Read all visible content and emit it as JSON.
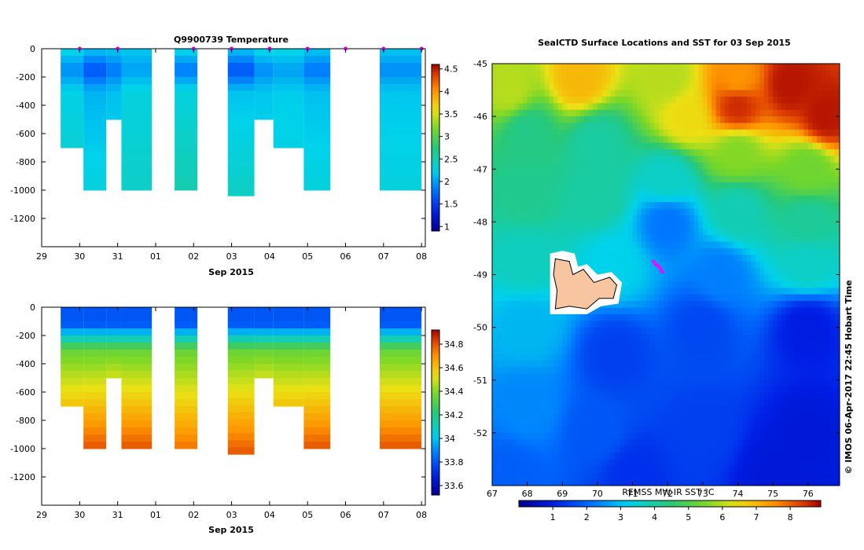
{
  "chart_data": [
    {
      "type": "heatmap",
      "title": "Q9900739  Temperature",
      "xlabel": "Sep 2015",
      "ylabel": "",
      "x_ticks": [
        "29",
        "30",
        "31",
        "01",
        "02",
        "03",
        "04",
        "05",
        "06",
        "07",
        "08"
      ],
      "x_range_days": [
        29,
        39.1
      ],
      "y_ticks": [
        0,
        -200,
        -400,
        -600,
        -800,
        -1000,
        -1200
      ],
      "ylim": [
        -1400,
        0
      ],
      "colorbar": {
        "ticks": [
          1,
          1.5,
          2,
          2.5,
          3,
          3.5,
          4,
          4.5
        ],
        "range": [
          0.9,
          4.6
        ]
      },
      "surface_marker_days": [
        30,
        31,
        33,
        34,
        35,
        36,
        37,
        38,
        39
      ],
      "profiles": [
        {
          "day_start": 29.5,
          "day_end": 30.1,
          "depth": -700,
          "surface_value": 2.3,
          "min_value": 1.9,
          "deep_value": 2.4
        },
        {
          "day_start": 30.1,
          "day_end": 30.7,
          "depth": -1000,
          "surface_value": 2.2,
          "min_value": 1.6,
          "deep_value": 2.3
        },
        {
          "day_start": 30.7,
          "day_end": 31.1,
          "depth": -500,
          "surface_value": 2.2,
          "min_value": 1.8,
          "deep_value": 2.3
        },
        {
          "day_start": 31.1,
          "day_end": 31.9,
          "depth": -1000,
          "surface_value": 2.2,
          "min_value": 2.0,
          "deep_value": 2.4
        },
        {
          "day_start": 32.5,
          "day_end": 33.1,
          "depth": -1000,
          "surface_value": 2.3,
          "min_value": 1.8,
          "deep_value": 2.5
        },
        {
          "day_start": 33.9,
          "day_end": 34.6,
          "depth": -1040,
          "surface_value": 2.2,
          "min_value": 1.6,
          "deep_value": 2.4
        },
        {
          "day_start": 34.6,
          "day_end": 35.1,
          "depth": -500,
          "surface_value": 2.3,
          "min_value": 1.9,
          "deep_value": 2.3
        },
        {
          "day_start": 35.1,
          "day_end": 35.9,
          "depth": -700,
          "surface_value": 2.3,
          "min_value": 2.0,
          "deep_value": 2.3
        },
        {
          "day_start": 35.9,
          "day_end": 36.6,
          "depth": -1000,
          "surface_value": 2.2,
          "min_value": 1.8,
          "deep_value": 2.3
        },
        {
          "day_start": 37.9,
          "day_end": 39.0,
          "depth": -1000,
          "surface_value": 2.2,
          "min_value": 1.9,
          "deep_value": 2.3
        }
      ]
    },
    {
      "type": "heatmap",
      "title": "",
      "xlabel": "Sep 2015",
      "ylabel": "",
      "x_ticks": [
        "29",
        "30",
        "31",
        "01",
        "02",
        "03",
        "04",
        "05",
        "06",
        "07",
        "08"
      ],
      "x_range_days": [
        29,
        39.1
      ],
      "y_ticks": [
        0,
        -200,
        -400,
        -600,
        -800,
        -1000,
        -1200
      ],
      "ylim": [
        -1400,
        0
      ],
      "colorbar": {
        "ticks": [
          33.6,
          33.8,
          34,
          34.2,
          34.4,
          34.6,
          34.8
        ],
        "range": [
          33.52,
          34.92
        ]
      },
      "profiles": [
        {
          "day_start": 29.5,
          "day_end": 30.1,
          "depth": -700,
          "surface_value": 33.8,
          "deep_value": 34.6
        },
        {
          "day_start": 30.1,
          "day_end": 30.7,
          "depth": -1000,
          "surface_value": 33.8,
          "deep_value": 34.8
        },
        {
          "day_start": 30.7,
          "day_end": 31.1,
          "depth": -500,
          "surface_value": 33.8,
          "deep_value": 34.5
        },
        {
          "day_start": 31.1,
          "day_end": 31.9,
          "depth": -1000,
          "surface_value": 33.8,
          "deep_value": 34.8
        },
        {
          "day_start": 32.5,
          "day_end": 33.1,
          "depth": -1000,
          "surface_value": 33.8,
          "deep_value": 34.75
        },
        {
          "day_start": 33.9,
          "day_end": 34.6,
          "depth": -1040,
          "surface_value": 33.8,
          "deep_value": 34.8
        },
        {
          "day_start": 34.6,
          "day_end": 35.1,
          "depth": -500,
          "surface_value": 33.8,
          "deep_value": 34.5
        },
        {
          "day_start": 35.1,
          "day_end": 35.9,
          "depth": -700,
          "surface_value": 33.8,
          "deep_value": 34.6
        },
        {
          "day_start": 35.9,
          "day_end": 36.6,
          "depth": -1000,
          "surface_value": 33.8,
          "deep_value": 34.8
        },
        {
          "day_start": 37.9,
          "day_end": 39.0,
          "depth": -1000,
          "surface_value": 33.8,
          "deep_value": 34.8
        }
      ]
    },
    {
      "type": "heatmap",
      "title": "SealCTD Surface Locations and SST for 03 Sep 2015",
      "x_ticks": [
        67,
        68,
        69,
        70,
        71,
        72,
        73,
        74,
        75,
        76
      ],
      "y_ticks": [
        -45,
        -46,
        -47,
        -48,
        -49,
        -50,
        -51,
        -52
      ],
      "xlim": [
        67,
        76.9
      ],
      "ylim": [
        -53,
        -45
      ],
      "colorbar": {
        "label": "REMSS MW-IR SST °C",
        "ticks": [
          1,
          2,
          3,
          4,
          5,
          6,
          7,
          8
        ],
        "range": [
          0,
          8.9
        ]
      },
      "sst_anchor_points": [
        {
          "lon": 67.5,
          "lat": -45.5,
          "sst": 6.0
        },
        {
          "lon": 69.5,
          "lat": -45.3,
          "sst": 7.0
        },
        {
          "lon": 72.0,
          "lat": -45.3,
          "sst": 6.0
        },
        {
          "lon": 74.0,
          "lat": -45.3,
          "sst": 7.5
        },
        {
          "lon": 75.5,
          "lat": -45.4,
          "sst": 8.7
        },
        {
          "lon": 76.5,
          "lat": -46.0,
          "sst": 8.7
        },
        {
          "lon": 74.0,
          "lat": -45.8,
          "sst": 8.5
        },
        {
          "lon": 72.5,
          "lat": -46.0,
          "sst": 6.5
        },
        {
          "lon": 68.0,
          "lat": -46.3,
          "sst": 4.3
        },
        {
          "lon": 70.0,
          "lat": -46.5,
          "sst": 4.0
        },
        {
          "lon": 74.0,
          "lat": -46.7,
          "sst": 5.6
        },
        {
          "lon": 76.0,
          "lat": -47.0,
          "sst": 5.4
        },
        {
          "lon": 68.0,
          "lat": -47.5,
          "sst": 4.2
        },
        {
          "lon": 70.0,
          "lat": -47.5,
          "sst": 4.0
        },
        {
          "lon": 72.0,
          "lat": -47.2,
          "sst": 3.6
        },
        {
          "lon": 72.0,
          "lat": -48.0,
          "sst": 2.2
        },
        {
          "lon": 74.0,
          "lat": -47.8,
          "sst": 3.8
        },
        {
          "lon": 76.0,
          "lat": -48.0,
          "sst": 4.1
        },
        {
          "lon": 68.0,
          "lat": -48.7,
          "sst": 3.7
        },
        {
          "lon": 70.5,
          "lat": -48.8,
          "sst": 3.2
        },
        {
          "lon": 73.5,
          "lat": -49.0,
          "sst": 2.3
        },
        {
          "lon": 76.0,
          "lat": -48.8,
          "sst": 3.6
        },
        {
          "lon": 68.0,
          "lat": -50.0,
          "sst": 2.9
        },
        {
          "lon": 70.5,
          "lat": -50.5,
          "sst": 1.5
        },
        {
          "lon": 73.0,
          "lat": -50.0,
          "sst": 1.6
        },
        {
          "lon": 76.0,
          "lat": -50.0,
          "sst": 1.0
        },
        {
          "lon": 68.0,
          "lat": -51.5,
          "sst": 2.4
        },
        {
          "lon": 70.0,
          "lat": -52.0,
          "sst": 1.8
        },
        {
          "lon": 73.0,
          "lat": -52.0,
          "sst": 1.5
        },
        {
          "lon": 76.0,
          "lat": -52.0,
          "sst": 0.9
        },
        {
          "lon": 67.5,
          "lat": -52.8,
          "sst": 1.9
        },
        {
          "lon": 71.0,
          "lat": -52.8,
          "sst": 1.3
        },
        {
          "lon": 75.0,
          "lat": -52.8,
          "sst": 0.9
        }
      ],
      "seal_track": [
        {
          "lon": 71.6,
          "lat": -48.75
        },
        {
          "lon": 71.65,
          "lat": -48.8
        },
        {
          "lon": 71.7,
          "lat": -48.82
        },
        {
          "lon": 71.75,
          "lat": -48.85
        },
        {
          "lon": 71.8,
          "lat": -48.9
        },
        {
          "lon": 71.85,
          "lat": -48.95
        }
      ],
      "island_outline": [
        {
          "lon": 68.8,
          "lat": -48.7
        },
        {
          "lon": 69.2,
          "lat": -48.75
        },
        {
          "lon": 69.3,
          "lat": -49.0
        },
        {
          "lon": 69.6,
          "lat": -48.9
        },
        {
          "lon": 69.9,
          "lat": -49.15
        },
        {
          "lon": 70.35,
          "lat": -49.05
        },
        {
          "lon": 70.55,
          "lat": -49.2
        },
        {
          "lon": 70.45,
          "lat": -49.45
        },
        {
          "lon": 70.05,
          "lat": -49.45
        },
        {
          "lon": 69.7,
          "lat": -49.65
        },
        {
          "lon": 69.2,
          "lat": -49.6
        },
        {
          "lon": 68.8,
          "lat": -49.65
        },
        {
          "lon": 68.85,
          "lat": -49.3
        },
        {
          "lon": 68.75,
          "lat": -49.0
        }
      ],
      "island_mask_outline": [
        {
          "lon": 68.65,
          "lat": -48.6
        },
        {
          "lon": 69.0,
          "lat": -48.55
        },
        {
          "lon": 69.35,
          "lat": -48.6
        },
        {
          "lon": 69.45,
          "lat": -48.85
        },
        {
          "lon": 69.7,
          "lat": -48.8
        },
        {
          "lon": 70.0,
          "lat": -49.0
        },
        {
          "lon": 70.4,
          "lat": -48.95
        },
        {
          "lon": 70.7,
          "lat": -49.15
        },
        {
          "lon": 70.6,
          "lat": -49.55
        },
        {
          "lon": 70.1,
          "lat": -49.6
        },
        {
          "lon": 69.7,
          "lat": -49.75
        },
        {
          "lon": 68.65,
          "lat": -49.75
        }
      ]
    }
  ],
  "side_text": "© IMOS 06-Apr-2017 22:45 Hobart Time",
  "colors": {
    "island_fill": "#f7c6a0",
    "seal_track": "#ff00ff",
    "surface_marker": "#cc00cc"
  }
}
